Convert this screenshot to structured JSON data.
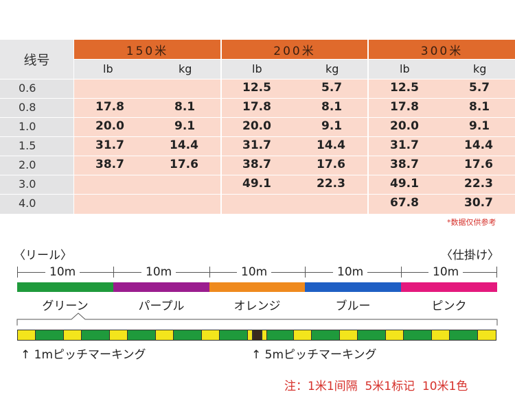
{
  "table": {
    "line_label": "线号",
    "groups": [
      "150米",
      "200米",
      "300米"
    ],
    "units": [
      "lb",
      "kg",
      "lb",
      "kg",
      "lb",
      "kg"
    ],
    "rows": [
      {
        "size": "0.6",
        "values": [
          "",
          "",
          "12.5",
          "5.7",
          "12.5",
          "5.7"
        ]
      },
      {
        "size": "0.8",
        "values": [
          "17.8",
          "8.1",
          "17.8",
          "8.1",
          "17.8",
          "8.1"
        ]
      },
      {
        "size": "1.0",
        "values": [
          "20.0",
          "9.1",
          "20.0",
          "9.1",
          "20.0",
          "9.1"
        ]
      },
      {
        "size": "1.5",
        "values": [
          "31.7",
          "14.4",
          "31.7",
          "14.4",
          "31.7",
          "14.4"
        ]
      },
      {
        "size": "2.0",
        "values": [
          "38.7",
          "17.6",
          "38.7",
          "17.6",
          "38.7",
          "17.6"
        ]
      },
      {
        "size": "3.0",
        "values": [
          "",
          "",
          "49.1",
          "22.3",
          "49.1",
          "22.3"
        ]
      },
      {
        "size": "4.0",
        "values": [
          "",
          "",
          "",
          "",
          "67.8",
          "30.7"
        ]
      }
    ],
    "footnote": "*数据仅供参考"
  },
  "diagram": {
    "reel_label": "〈リール〉",
    "tackle_label": "〈仕掛け〉",
    "segments": [
      {
        "length": "10m",
        "name": "グリーン",
        "color": "#1f9a3c"
      },
      {
        "length": "10m",
        "name": "パープル",
        "color": "#9b1d8f"
      },
      {
        "length": "10m",
        "name": "オレンジ",
        "color": "#ef8a1e"
      },
      {
        "length": "10m",
        "name": "ブルー",
        "color": "#1f5fc4"
      },
      {
        "length": "10m",
        "name": "ピンク",
        "color": "#e4197d"
      }
    ],
    "marking_colors": {
      "base": "#1f9a3c",
      "mark_1m": "#f3e51c",
      "mark_5m": "#3a2a1e"
    },
    "marking_1m": "↑ 1mピッチマーキング",
    "marking_5m": "↑ 5mピッチマーキング"
  },
  "note": "注：1米1间隔  5米1标记  10米1色"
}
